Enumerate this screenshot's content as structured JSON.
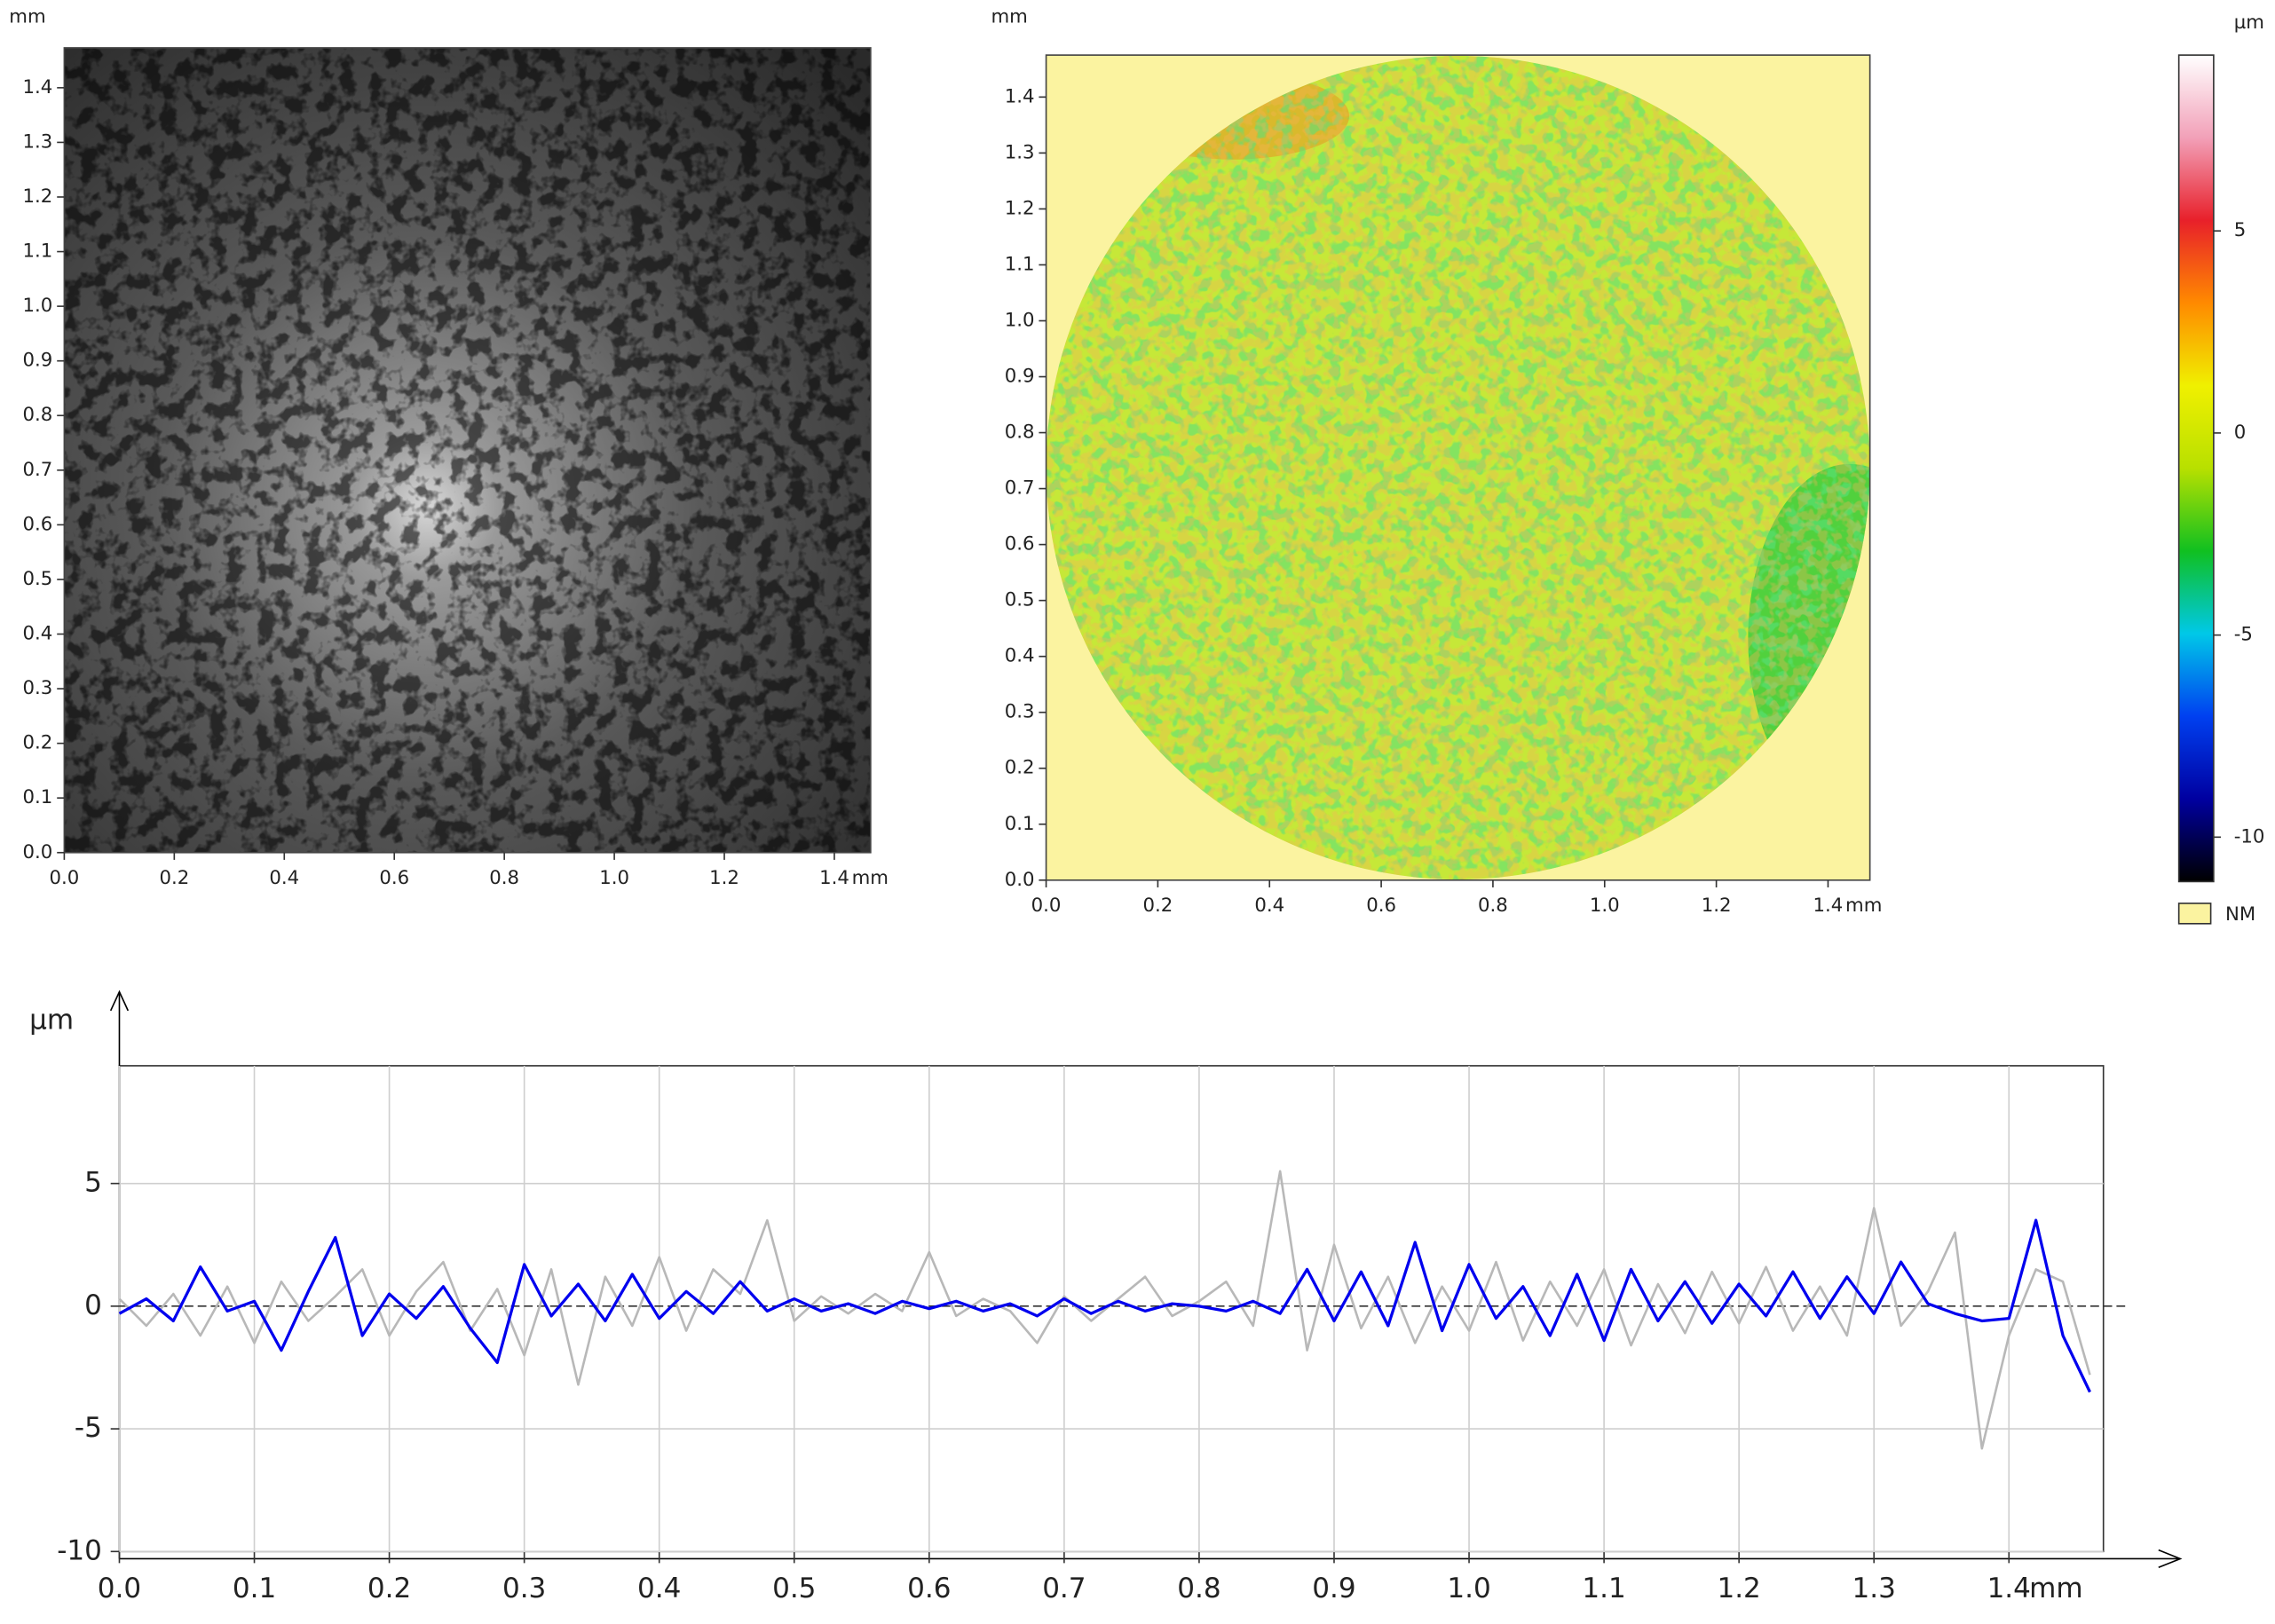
{
  "chart_data": [
    {
      "type": "image",
      "xlim": [
        0,
        1.466
      ],
      "ylim": [
        0,
        1.473
      ],
      "xticks": [
        {
          "value": 0,
          "label": "0.0"
        },
        {
          "value": 0.2,
          "label": "0.2"
        },
        {
          "value": 0.4,
          "label": "0.4"
        },
        {
          "value": 0.6,
          "label": "0.6"
        },
        {
          "value": 0.8,
          "label": "0.8"
        },
        {
          "value": 1,
          "label": "1.0"
        },
        {
          "value": 1.2,
          "label": "1.2"
        },
        {
          "value": 1.4,
          "label": "1.4"
        }
      ],
      "yticks": [
        {
          "value": 0,
          "label": "0.0"
        },
        0.1,
        0.2,
        0.3,
        0.4,
        0.5,
        0.6,
        0.7,
        0.8,
        0.9,
        {
          "value": 1,
          "label": "1.0"
        },
        1.1,
        1.2,
        1.3,
        1.4
      ],
      "x_unit": "mm",
      "y_unit": "mm"
    },
    {
      "type": "heatmap",
      "xlim": [
        0,
        1.475
      ],
      "ylim": [
        0,
        1.475
      ],
      "xticks": [
        {
          "value": 0,
          "label": "0.0"
        },
        {
          "value": 0.2,
          "label": "0.2"
        },
        {
          "value": 0.4,
          "label": "0.4"
        },
        {
          "value": 0.6,
          "label": "0.6"
        },
        {
          "value": 0.8,
          "label": "0.8"
        },
        {
          "value": 1,
          "label": "1.0"
        },
        {
          "value": 1.2,
          "label": "1.2"
        },
        {
          "value": 1.4,
          "label": "1.4"
        }
      ],
      "yticks": [
        {
          "value": 0,
          "label": "0.0"
        },
        0.1,
        0.2,
        0.3,
        0.4,
        0.5,
        0.6,
        0.7,
        0.8,
        0.9,
        {
          "value": 1,
          "label": "1.0"
        },
        1.1,
        1.2,
        1.3,
        1.4
      ],
      "x_unit": "mm",
      "y_unit": "mm",
      "colorbar": {
        "unit": "µm",
        "lim": [
          -11.1,
          9.35
        ],
        "ticks": [
          5,
          0,
          -5,
          -10
        ],
        "colors": [
          "#ffffff",
          "#f2a0b8",
          "#e8202a",
          "#ff8a00",
          "#f0f000",
          "#b8e000",
          "#10c020",
          "#00c8e8",
          "#0040f0",
          "#0000a0",
          "#000000"
        ],
        "nodata_label": "NM",
        "nodata_color": "#fbf3a0"
      }
    },
    {
      "type": "line",
      "xlim": [
        0,
        1.47
      ],
      "ylim": [
        -10,
        9.8
      ],
      "xticks": [
        {
          "value": 0,
          "label": "0.0"
        },
        0.1,
        0.2,
        0.3,
        0.4,
        0.5,
        0.6,
        0.7,
        0.8,
        0.9,
        {
          "value": 1,
          "label": "1.0"
        },
        1.1,
        1.2,
        1.3,
        1.4
      ],
      "yticks": [
        -10,
        -5,
        0,
        5
      ],
      "x_unit": "mm",
      "y_unit": "µm",
      "grid": true,
      "x": [
        0,
        0.02,
        0.04,
        0.06,
        0.08,
        0.1,
        0.12,
        0.14,
        0.16,
        0.18,
        0.2,
        0.22,
        0.24,
        0.26,
        0.28,
        0.3,
        0.32,
        0.34,
        0.36,
        0.38,
        0.4,
        0.42,
        0.44,
        0.46,
        0.48,
        0.5,
        0.52,
        0.54,
        0.56,
        0.58,
        0.6,
        0.62,
        0.64,
        0.66,
        0.68,
        0.7,
        0.72,
        0.74,
        0.76,
        0.78,
        0.8,
        0.82,
        0.84,
        0.86,
        0.88,
        0.9,
        0.92,
        0.94,
        0.96,
        0.98,
        1,
        1.02,
        1.04,
        1.06,
        1.08,
        1.1,
        1.12,
        1.14,
        1.16,
        1.18,
        1.2,
        1.22,
        1.24,
        1.26,
        1.28,
        1.3,
        1.32,
        1.34,
        1.36,
        1.38,
        1.4,
        1.42,
        1.44,
        1.46
      ],
      "series": [
        {
          "color": "#b8b8b8",
          "values": [
            0.3,
            -0.8,
            0.5,
            -1.2,
            0.8,
            -1.5,
            1.0,
            -0.6,
            0.4,
            1.5,
            -1.2,
            0.6,
            1.8,
            -1.0,
            0.7,
            -2.0,
            1.5,
            -3.2,
            1.2,
            -0.8,
            2.0,
            -1.0,
            1.5,
            0.5,
            3.5,
            -0.6,
            0.4,
            -0.3,
            0.5,
            -0.2,
            2.2,
            -0.4,
            0.3,
            -0.2,
            -1.5,
            0.4,
            -0.6,
            0.3,
            1.2,
            -0.4,
            0.2,
            1.0,
            -0.8,
            5.5,
            -1.8,
            2.5,
            -0.9,
            1.2,
            -1.5,
            0.8,
            -1.0,
            1.8,
            -1.4,
            1.0,
            -0.8,
            1.5,
            -1.6,
            0.9,
            -1.1,
            1.4,
            -0.7,
            1.6,
            -1.0,
            0.8,
            -1.2,
            4.0,
            -0.8,
            0.6,
            3.0,
            -5.8,
            -1.2,
            1.5,
            1.0,
            -2.8
          ]
        },
        {
          "color": "#0000ee",
          "values": [
            -0.3,
            0.3,
            -0.6,
            1.6,
            -0.2,
            0.2,
            -1.8,
            0.6,
            2.8,
            -1.2,
            0.5,
            -0.5,
            0.8,
            -0.9,
            -2.3,
            1.7,
            -0.4,
            0.9,
            -0.6,
            1.3,
            -0.5,
            0.6,
            -0.3,
            1.0,
            -0.2,
            0.3,
            -0.2,
            0.1,
            -0.3,
            0.2,
            -0.1,
            0.2,
            -0.2,
            0.1,
            -0.4,
            0.3,
            -0.3,
            0.2,
            -0.2,
            0.1,
            0,
            -0.2,
            0.2,
            -0.3,
            1.5,
            -0.6,
            1.4,
            -0.8,
            2.6,
            -1.0,
            1.7,
            -0.5,
            0.8,
            -1.2,
            1.3,
            -1.4,
            1.5,
            -0.6,
            1.0,
            -0.7,
            0.9,
            -0.4,
            1.4,
            -0.5,
            1.2,
            -0.3,
            1.8,
            0.1,
            -0.3,
            -0.6,
            -0.5,
            3.5,
            -1.2,
            -3.5
          ]
        }
      ]
    }
  ]
}
